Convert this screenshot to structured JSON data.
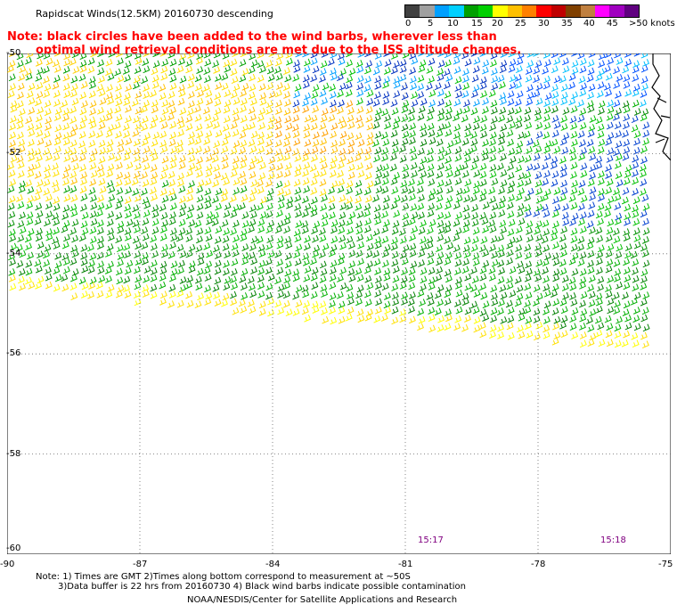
{
  "title": "Rapidscat Winds(12.5KM) 20160730 descending",
  "note": {
    "line1": "Note: black circles have been added to the wind barbs, wherever less than",
    "line2": "optimal wind retrieval conditions are met due to the ISS altitude changes."
  },
  "legend": {
    "colors": [
      "#404040",
      "#a0a0a0",
      "#00a0ff",
      "#00d0ff",
      "#00a000",
      "#00d000",
      "#ffff00",
      "#ffc000",
      "#ff8000",
      "#ff0000",
      "#c00000",
      "#804000",
      "#c08040",
      "#ff00ff",
      "#a000c0",
      "#600080"
    ],
    "labels": [
      "0",
      "5",
      "10",
      "15",
      "20",
      "25",
      "30",
      "35",
      "40",
      "45",
      ">50 knots"
    ]
  },
  "axes": {
    "y_labels": [
      "-50",
      "-52",
      "-54",
      "-56",
      "-58",
      "-60"
    ],
    "x_labels": [
      "-90",
      "-87",
      "-84",
      "-81",
      "-78",
      "-75"
    ]
  },
  "times": [
    "15:17",
    "15:18"
  ],
  "footer": {
    "line1": "Note: 1) Times are GMT 2)Times along bottom correspond to measurement at ~50S",
    "line2": "3)Data buffer is 22 hrs from 20160730 4) Black wind barbs indicate possible contamination",
    "line3": "NOAA/NESDIS/Center for Satellite Applications and Research"
  }
}
